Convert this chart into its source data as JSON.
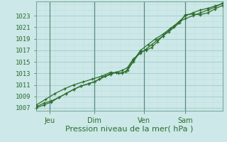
{
  "xlabel": "Pression niveau de la mer( hPa )",
  "bg_color": "#cce8e8",
  "grid_major_color": "#aacece",
  "grid_minor_color": "#c4e0dc",
  "vline_color": "#5a8a7a",
  "line_color": "#2d6e2d",
  "ylim": [
    1006.5,
    1025.5
  ],
  "yticks": [
    1007,
    1009,
    1011,
    1013,
    1015,
    1017,
    1019,
    1021,
    1023
  ],
  "day_labels": [
    "Jeu",
    "Dim",
    "Ven",
    "Sam"
  ],
  "day_positions": [
    0.07,
    0.31,
    0.58,
    0.8
  ],
  "line1_x": [
    0.0,
    0.04,
    0.08,
    0.12,
    0.16,
    0.2,
    0.24,
    0.28,
    0.31,
    0.34,
    0.37,
    0.4,
    0.43,
    0.46,
    0.49,
    0.52,
    0.56,
    0.59,
    0.62,
    0.65,
    0.68,
    0.71,
    0.74,
    0.77,
    0.8,
    0.84,
    0.88,
    0.92,
    0.96,
    1.0
  ],
  "line1_y": [
    1007.2,
    1007.8,
    1008.2,
    1008.8,
    1009.5,
    1010.2,
    1010.8,
    1011.2,
    1011.5,
    1012.0,
    1012.5,
    1012.8,
    1013.2,
    1013.0,
    1013.5,
    1015.0,
    1016.8,
    1017.0,
    1017.5,
    1018.5,
    1019.5,
    1020.2,
    1021.0,
    1021.8,
    1023.2,
    1023.3,
    1023.2,
    1023.5,
    1024.2,
    1024.8
  ],
  "line2_x": [
    0.0,
    0.04,
    0.08,
    0.12,
    0.16,
    0.2,
    0.24,
    0.28,
    0.31,
    0.34,
    0.37,
    0.4,
    0.43,
    0.46,
    0.49,
    0.52,
    0.56,
    0.59,
    0.62,
    0.65,
    0.68,
    0.71,
    0.74,
    0.77,
    0.8,
    0.84,
    0.88,
    0.92,
    0.96,
    1.0
  ],
  "line2_y": [
    1007.0,
    1007.5,
    1008.0,
    1008.8,
    1009.5,
    1010.2,
    1010.8,
    1011.2,
    1011.5,
    1012.0,
    1012.5,
    1013.0,
    1013.2,
    1013.5,
    1014.0,
    1015.5,
    1016.5,
    1017.2,
    1018.0,
    1018.8,
    1019.5,
    1020.5,
    1021.2,
    1022.0,
    1022.5,
    1023.0,
    1023.5,
    1024.0,
    1024.5,
    1025.2
  ],
  "line3_x": [
    0.0,
    0.05,
    0.1,
    0.15,
    0.2,
    0.25,
    0.3,
    0.35,
    0.4,
    0.44,
    0.48,
    0.52,
    0.56,
    0.6,
    0.64,
    0.68,
    0.72,
    0.76,
    0.8,
    0.84,
    0.88,
    0.92,
    0.96,
    1.0
  ],
  "line3_y": [
    1007.5,
    1008.5,
    1009.5,
    1010.3,
    1011.0,
    1011.5,
    1012.0,
    1012.5,
    1013.2,
    1013.0,
    1013.3,
    1015.2,
    1017.0,
    1018.0,
    1019.0,
    1019.8,
    1020.8,
    1021.8,
    1023.0,
    1023.5,
    1024.0,
    1024.3,
    1024.7,
    1025.1
  ]
}
